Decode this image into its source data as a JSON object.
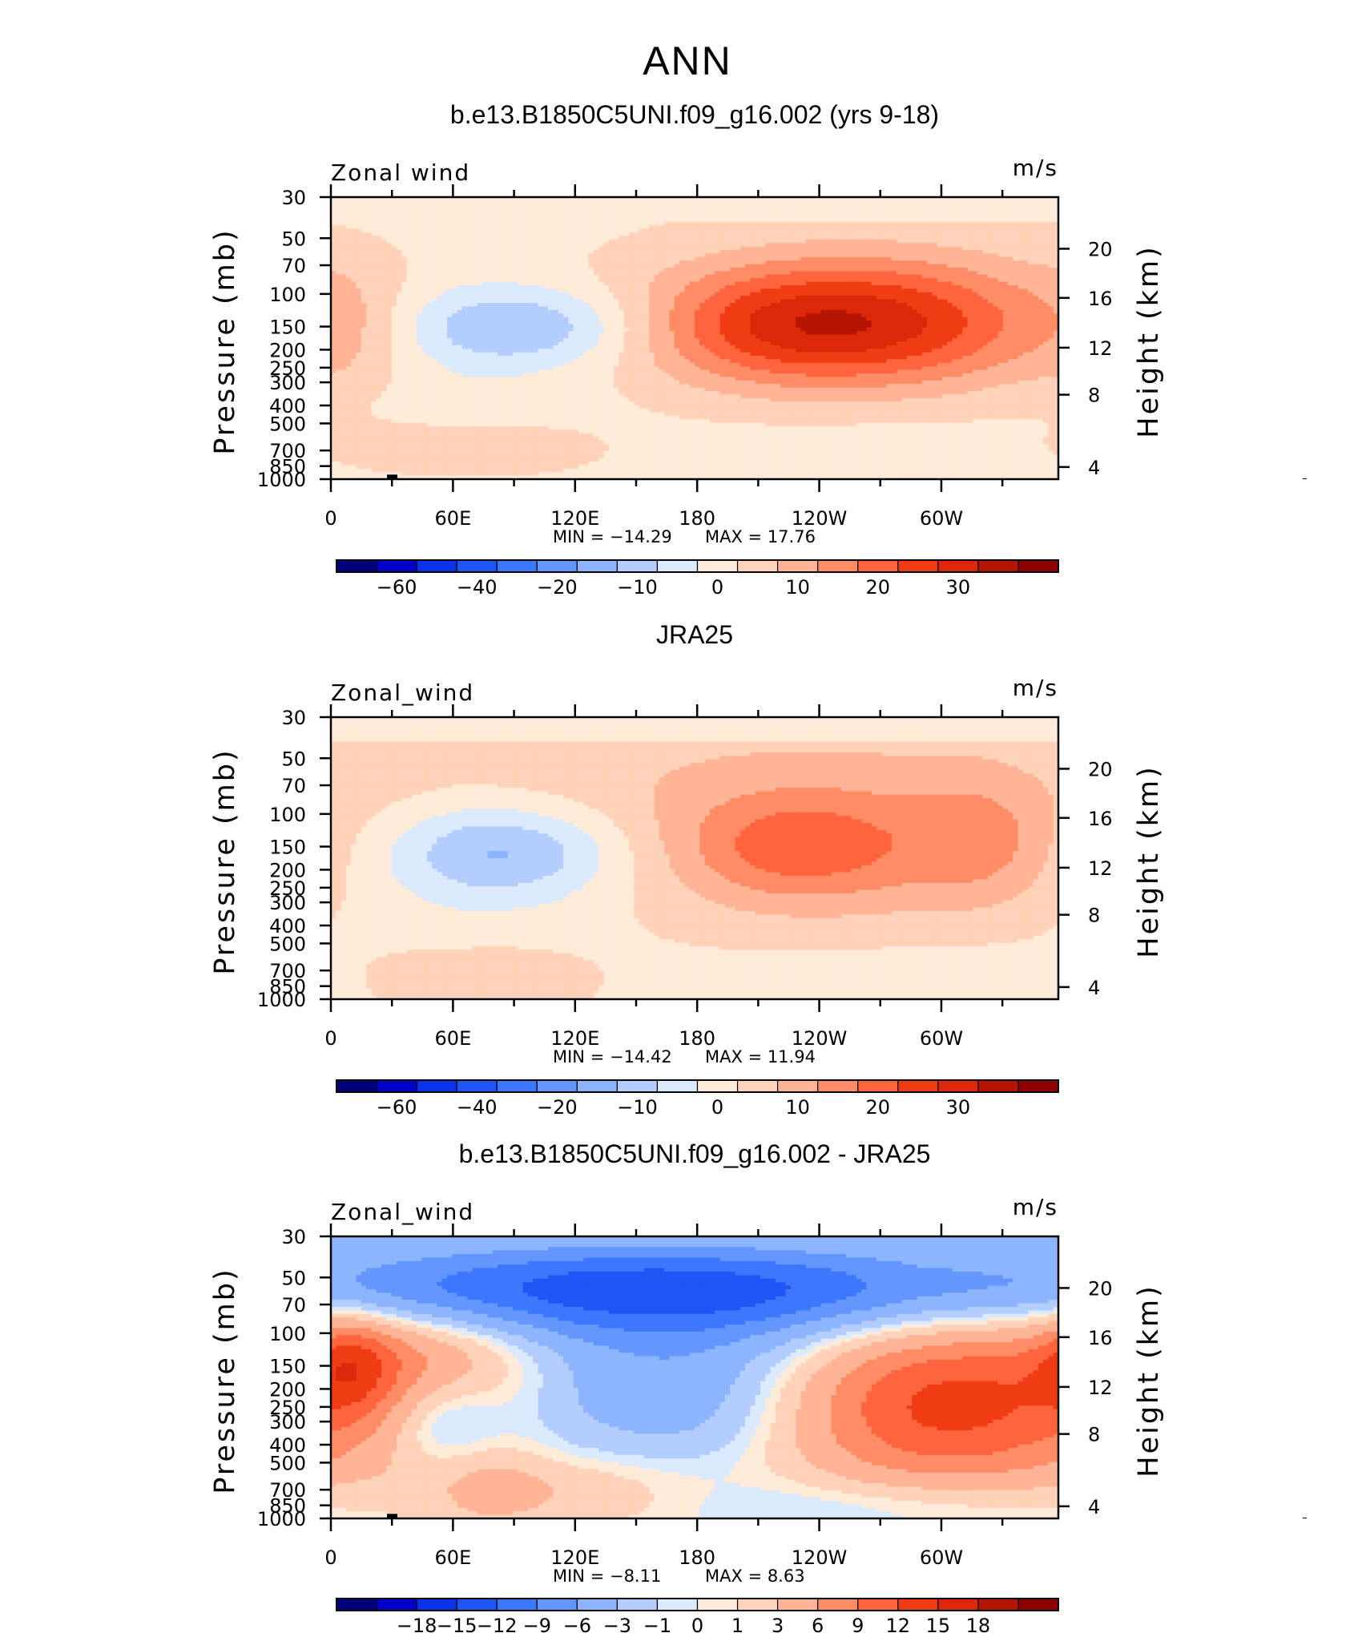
{
  "figure": {
    "season": "ANN"
  },
  "colors": {
    "levels_abs": [
      "#00007d",
      "#0000c8",
      "#0a32e6",
      "#1e55f5",
      "#3c78ff",
      "#6496ff",
      "#8cb4ff",
      "#b4cdff",
      "#dceaff",
      "#ffebd7",
      "#ffd2b9",
      "#ffb496",
      "#ff8c64",
      "#ff643c",
      "#f03c14",
      "#dc2808",
      "#b41400",
      "#8c0000"
    ],
    "levels_diff": [
      "#00007d",
      "#0000c8",
      "#0a32e6",
      "#1e55f5",
      "#3c78ff",
      "#6496ff",
      "#8cb4ff",
      "#b4cdff",
      "#dceaff",
      "#ffebd7",
      "#ffd2b9",
      "#ffb496",
      "#ff8c64",
      "#ff643c",
      "#f03c14",
      "#dc2808",
      "#b41400",
      "#8c0000"
    ],
    "axis": "#000000",
    "topography": "#000000"
  },
  "chart_data": [
    {
      "type": "heatmap",
      "title": "b.e13.B1850C5UNI.f09_g16.002 (yrs 9-18)",
      "left_label": "Zonal wind",
      "units": "m/s",
      "ylabel": "Pressure  (mb)",
      "ylabel_right": "Height  (km)",
      "xticklabels": [
        "0",
        "60E",
        "120E",
        "180",
        "120W",
        "60W"
      ],
      "x_ticks_deg": [
        0,
        60,
        120,
        180,
        240,
        300
      ],
      "xlim": [
        0,
        357.5
      ],
      "pressure_ticks": [
        30,
        50,
        70,
        100,
        150,
        200,
        250,
        300,
        400,
        500,
        700,
        850,
        1000
      ],
      "ylim": [
        30,
        1000
      ],
      "height_ticks_km": [
        4,
        8,
        12,
        16,
        20
      ],
      "min_label": "MIN  =  −14.29",
      "max_label": "MAX  =   17.76",
      "min": -14.29,
      "max": 17.76,
      "colorbar_ticklabels": [
        "−60",
        "−40",
        "−20",
        "−10",
        "0",
        "10",
        "20",
        "30"
      ],
      "contour_levels": [
        -70,
        -60,
        -50,
        -40,
        -30,
        -20,
        -15,
        -10,
        -5,
        0,
        5,
        10,
        15,
        20,
        25,
        30,
        35
      ],
      "features": [
        {
          "lon": 272,
          "p": 130,
          "value": 17.76
        },
        {
          "lon": 215,
          "p": 150,
          "value": 13
        },
        {
          "lon": 95,
          "p": 150,
          "value": -14.29
        },
        {
          "lon": 55,
          "p": 700,
          "value": 6
        }
      ]
    },
    {
      "type": "heatmap",
      "title": "JRA25",
      "left_label": "Zonal_wind",
      "units": "m/s",
      "ylabel": "Pressure  (mb)",
      "ylabel_right": "Height  (km)",
      "xticklabels": [
        "0",
        "60E",
        "120E",
        "180",
        "120W",
        "60W"
      ],
      "x_ticks_deg": [
        0,
        60,
        120,
        180,
        240,
        300
      ],
      "xlim": [
        0,
        357.5
      ],
      "pressure_ticks": [
        30,
        50,
        70,
        100,
        150,
        200,
        250,
        300,
        400,
        500,
        700,
        850,
        1000
      ],
      "ylim": [
        30,
        1000
      ],
      "height_ticks_km": [
        4,
        8,
        12,
        16,
        20
      ],
      "min_label": "MIN  =  −14.42",
      "max_label": "MAX  =   11.94",
      "min": -14.42,
      "max": 11.94,
      "colorbar_ticklabels": [
        "−60",
        "−40",
        "−20",
        "−10",
        "0",
        "10",
        "20",
        "30"
      ],
      "contour_levels": [
        -70,
        -60,
        -50,
        -40,
        -30,
        -20,
        -15,
        -10,
        -5,
        0,
        5,
        10,
        15,
        20,
        25,
        30,
        35
      ],
      "features": [
        {
          "lon": 230,
          "p": 150,
          "value": 11.94
        },
        {
          "lon": 85,
          "p": 150,
          "value": -14.42
        },
        {
          "lon": 320,
          "p": 130,
          "value": 8
        }
      ]
    },
    {
      "type": "heatmap",
      "title": "b.e13.B1850C5UNI.f09_g16.002 - JRA25",
      "left_label": "Zonal_wind",
      "units": "m/s",
      "ylabel": "Pressure  (mb)",
      "ylabel_right": "Height  (km)",
      "xticklabels": [
        "0",
        "60E",
        "120E",
        "180",
        "120W",
        "60W"
      ],
      "x_ticks_deg": [
        0,
        60,
        120,
        180,
        240,
        300
      ],
      "xlim": [
        0,
        357.5
      ],
      "pressure_ticks": [
        30,
        50,
        70,
        100,
        150,
        200,
        250,
        300,
        400,
        500,
        700,
        850,
        1000
      ],
      "ylim": [
        30,
        1000
      ],
      "height_ticks_km": [
        4,
        8,
        12,
        16,
        20
      ],
      "min_label": "MIN  =    −8.11",
      "max_label": "MAX  =    8.63",
      "min": -8.11,
      "max": 8.63,
      "colorbar_ticklabels": [
        "−18",
        "−15",
        "−12",
        "−9",
        "−6",
        "−3",
        "−1",
        "0",
        "1",
        "3",
        "6",
        "9",
        "12",
        "15",
        "18"
      ],
      "contour_levels": [
        -21,
        -18,
        -15,
        -12,
        -9,
        -6,
        -3,
        -1,
        0,
        1,
        3,
        6,
        9,
        12,
        15,
        18,
        21
      ],
      "features": [
        {
          "lon": 180,
          "p": 60,
          "value": -8.11
        },
        {
          "lon": 300,
          "p": 250,
          "value": 8.63
        },
        {
          "lon": 40,
          "p": 130,
          "value": 5
        }
      ]
    }
  ]
}
